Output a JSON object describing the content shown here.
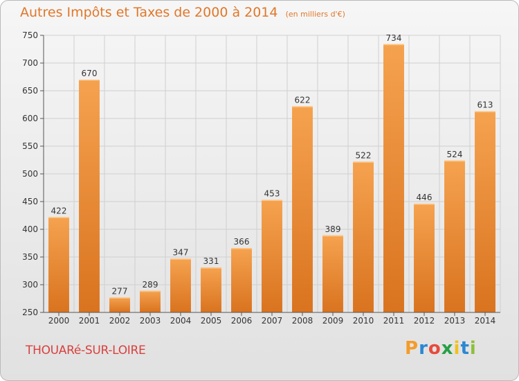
{
  "title": "Autres Impôts et Taxes de 2000 à 2014",
  "unit": "(en milliers d'€)",
  "city": "THOUARé-SUR-LOIRE",
  "brand": "Proxiti",
  "brand_colors": [
    "#f39c2a",
    "#2a88d2",
    "#e64b3c",
    "#27a045",
    "#f0c020",
    "#2a88d2",
    "#8fbf3a"
  ],
  "colors": {
    "accent": "#e0772a",
    "bar_top": "#f5a24f",
    "bar_bottom": "#d9731f",
    "city": "#d9403e",
    "grid": "#cfcfcf"
  },
  "chart_data": {
    "type": "bar",
    "categories": [
      "2000",
      "2001",
      "2002",
      "2003",
      "2004",
      "2005",
      "2006",
      "2007",
      "2008",
      "2009",
      "2010",
      "2011",
      "2012",
      "2013",
      "2014"
    ],
    "values": [
      422,
      670,
      277,
      289,
      347,
      331,
      366,
      453,
      622,
      389,
      522,
      734,
      446,
      524,
      613
    ],
    "ylim": [
      250,
      750
    ],
    "yticks": [
      250,
      300,
      350,
      400,
      450,
      500,
      550,
      600,
      650,
      700,
      750
    ],
    "grid": true,
    "data_labels": true
  }
}
